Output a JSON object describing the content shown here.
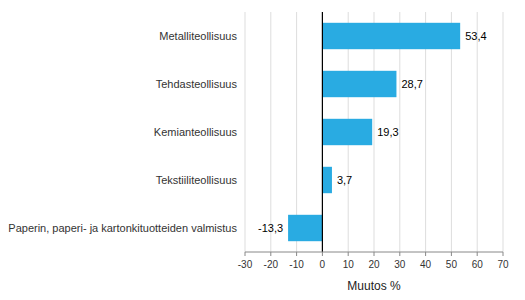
{
  "chart_data": {
    "type": "bar",
    "orientation": "horizontal",
    "categories": [
      "Paperin, paperi- ja kartonkituotteiden valmistus",
      "Tekstiiliteollisuus",
      "Kemianteollisuus",
      "Tehdasteollisuus",
      "Metalliteollisuus"
    ],
    "values": [
      -13.3,
      3.7,
      19.3,
      28.7,
      53.4
    ],
    "value_labels": [
      "-13,3",
      "3,7",
      "19,3",
      "28,7",
      "53,4"
    ],
    "data_labels": true,
    "color": "#29abe2",
    "xlabel": "Muutos %",
    "xlim": [
      -30,
      70
    ],
    "xticks": [
      -30,
      -20,
      -10,
      0,
      10,
      20,
      30,
      40,
      50,
      60,
      70
    ],
    "grid": true
  }
}
